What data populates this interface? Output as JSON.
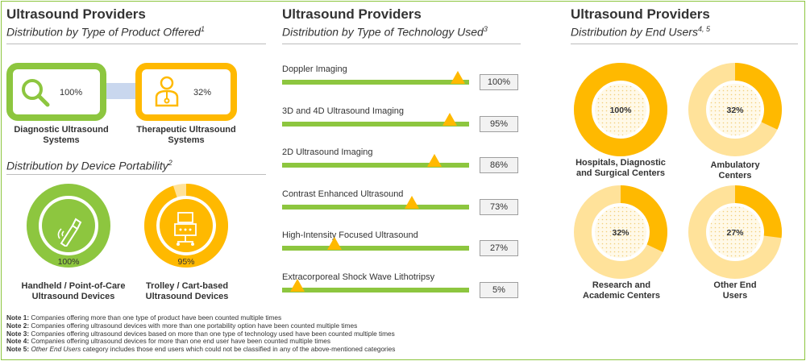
{
  "colors": {
    "green": "#8DC63F",
    "yellow": "#FFB900",
    "light_yellow": "#FFE29A",
    "pill": "#C9D7EE",
    "tech_track": "#8DC63F"
  },
  "section1": {
    "title": "Ultrasound Providers",
    "subtitle": "Distribution by Type of Product Offered",
    "ref": "1",
    "products": [
      {
        "label_line1": "Diagnostic Ultrasound",
        "label_line2": "Systems",
        "value": "100%",
        "icon": "magnifier-icon"
      },
      {
        "label_line1": "Therapeutic Ultrasound",
        "label_line2": "Systems",
        "value": "32%",
        "icon": "doctor-icon"
      }
    ]
  },
  "section2": {
    "subtitle": "Distribution by Device Portability",
    "ref": "2",
    "devices": [
      {
        "label_line1": "Handheld / Point-of-Care",
        "label_line2": "Ultrasound Devices",
        "value": "100%",
        "icon": "handheld-probe-icon"
      },
      {
        "label_line1": "Trolley / Cart-based",
        "label_line2": "Ultrasound Devices",
        "value": "95%",
        "icon": "ultrasound-cart-icon"
      }
    ]
  },
  "section3": {
    "title": "Ultrasound Providers",
    "subtitle": "Distribution by Type of Technology Used",
    "ref": "3"
  },
  "section4": {
    "title": "Ultrasound Providers",
    "subtitle": "Distribution by End Users",
    "ref": "4, 5",
    "end_users": [
      {
        "label_line1": "Hospitals, Diagnostic",
        "label_line2": "and Surgical Centers",
        "value": "100%"
      },
      {
        "label_line1": "Ambulatory",
        "label_line2": "Centers",
        "value": "32%"
      },
      {
        "label_line1": "Research and",
        "label_line2": "Academic Centers",
        "value": "32%"
      },
      {
        "label_line1": "Other End",
        "label_line2": "Users",
        "value": "27%"
      }
    ]
  },
  "chart_data": [
    {
      "type": "pie",
      "title": "Distribution by Device Portability",
      "categories": [
        "Handheld / Point-of-Care Ultrasound Devices",
        "Trolley / Cart-based Ultrasound Devices"
      ],
      "values": [
        100,
        95
      ]
    },
    {
      "type": "bar",
      "title": "Distribution by Type of Technology Used",
      "categories": [
        "Doppler Imaging",
        "3D and 4D Ultrasound Imaging",
        "2D Ultrasound Imaging",
        "Contrast Enhanced Ultrasound",
        "High-Intensity Focused Ultrasound",
        "Extracorporeal Shock Wave Lithotripsy"
      ],
      "values": [
        100,
        95,
        86,
        73,
        27,
        5
      ],
      "value_labels": [
        "100%",
        "95%",
        "86%",
        "73%",
        "27%",
        "5%"
      ],
      "ylim": [
        0,
        100
      ]
    },
    {
      "type": "pie",
      "title": "Distribution by End Users",
      "categories": [
        "Hospitals, Diagnostic and Surgical Centers",
        "Ambulatory Centers",
        "Research and Academic Centers",
        "Other End Users"
      ],
      "values": [
        100,
        32,
        32,
        27
      ]
    }
  ],
  "notes": [
    {
      "label": "Note 1:",
      "text": " Companies offering more than one type of product have been counted multiple times"
    },
    {
      "label": "Note 2:",
      "text": " Companies offering ultrasound devices with more than one portability option have been counted multiple times"
    },
    {
      "label": "Note 3:",
      "text": " Companies offering ultrasound devices based on more than one type of technology used have been counted multiple times"
    },
    {
      "label": "Note 4:",
      "text": " Companies offering ultrasound devices for more than one end user have been counted multiple times"
    },
    {
      "label": "Note 5:",
      "italic": "Other End Users",
      "text": " category includes those end users which could not be classified in any of the above-mentioned categories"
    }
  ]
}
